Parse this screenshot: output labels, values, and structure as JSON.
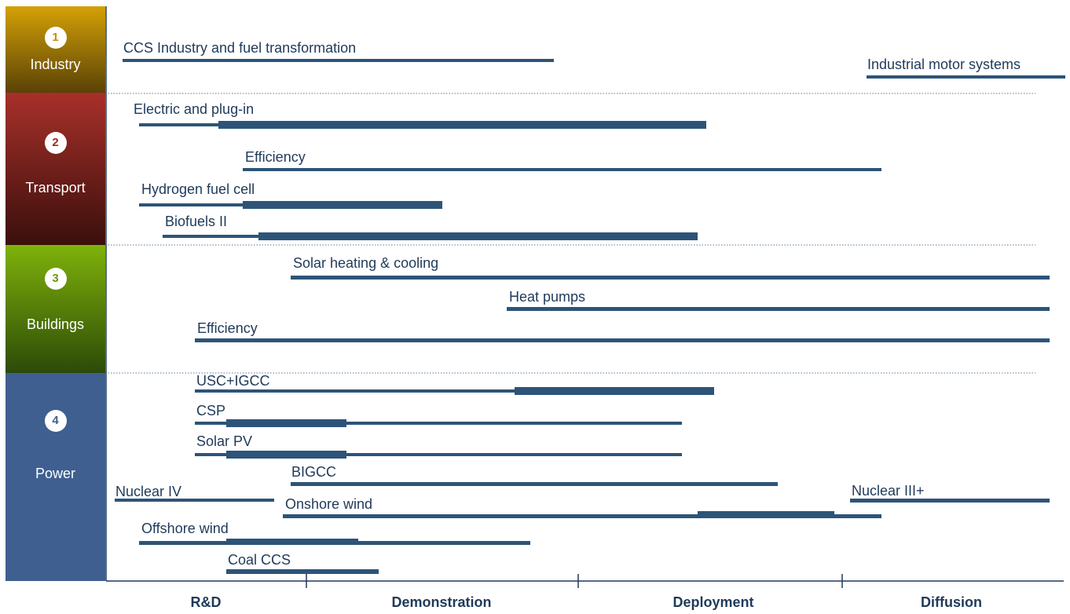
{
  "sectors": [
    {
      "number": "1",
      "name": "Industry",
      "color_top": "#d4a106",
      "color_bottom": "#5a4206",
      "badge_color": "#c09000"
    },
    {
      "number": "2",
      "name": "Transport",
      "color_top": "#a8302a",
      "color_bottom": "#3a0f0c",
      "badge_color": "#9a2a22"
    },
    {
      "number": "3",
      "name": "Buildings",
      "color_top": "#7fb20a",
      "color_bottom": "#2c4a08",
      "badge_color": "#6b9a08"
    },
    {
      "number": "4",
      "name": "Power",
      "color_top": "#3e5f90",
      "color_bottom": "#3e5f90",
      "badge_color": "#3e5f90"
    }
  ],
  "technologies": [
    {
      "label": "CCS Industry and fuel transformation"
    },
    {
      "label": "Industrial motor systems"
    },
    {
      "label": "Electric and plug-in"
    },
    {
      "label": "Efficiency"
    },
    {
      "label": "Hydrogen fuel cell"
    },
    {
      "label": "Biofuels II"
    },
    {
      "label": "Solar heating & cooling"
    },
    {
      "label": "Heat pumps"
    },
    {
      "label": "Efficiency"
    },
    {
      "label": "USC+IGCC"
    },
    {
      "label": "CSP"
    },
    {
      "label": "Solar PV"
    },
    {
      "label": "BIGCC"
    },
    {
      "label": "Nuclear IV"
    },
    {
      "label": "Nuclear III+"
    },
    {
      "label": "Onshore wind"
    },
    {
      "label": "Offshore wind"
    },
    {
      "label": "Coal CCS"
    }
  ],
  "phases": [
    "R&D",
    "Demonstration",
    "Deployment",
    "Diffusion"
  ],
  "colors": {
    "bar": "#2d5478",
    "axis": "#1f3a5a",
    "divider": "#5a7a9a"
  }
}
